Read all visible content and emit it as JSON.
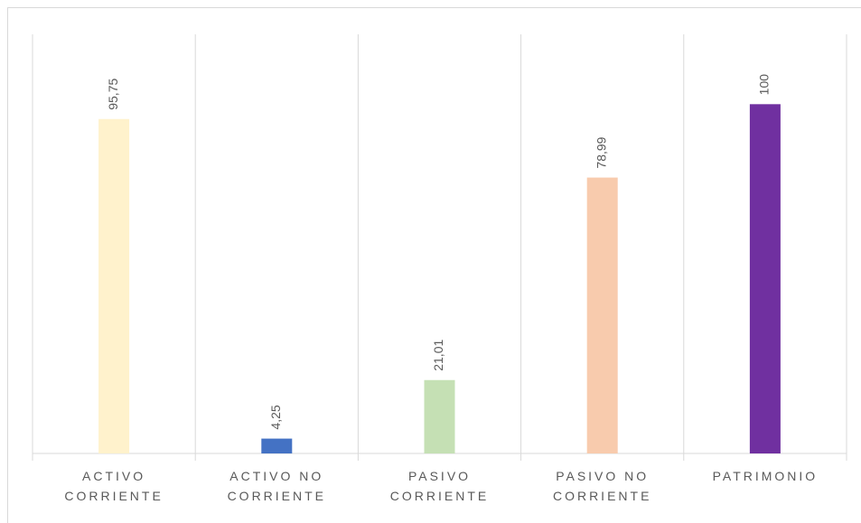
{
  "chart_data": {
    "type": "bar",
    "categories": [
      "ACTIVO CORRIENTE",
      "ACTIVO NO CORRIENTE",
      "PASIVO CORRIENTE",
      "PASIVO NO CORRIENTE",
      "PATRIMONIO"
    ],
    "values": [
      95.75,
      4.25,
      21.01,
      78.99,
      100
    ],
    "value_labels": [
      "95,75",
      "4,25",
      "21,01",
      "78,99",
      "100"
    ],
    "colors": [
      "#fff2cc",
      "#4472c4",
      "#c5e0b4",
      "#f8cbad",
      "#7030a0"
    ],
    "ylim": [
      0,
      120
    ]
  }
}
